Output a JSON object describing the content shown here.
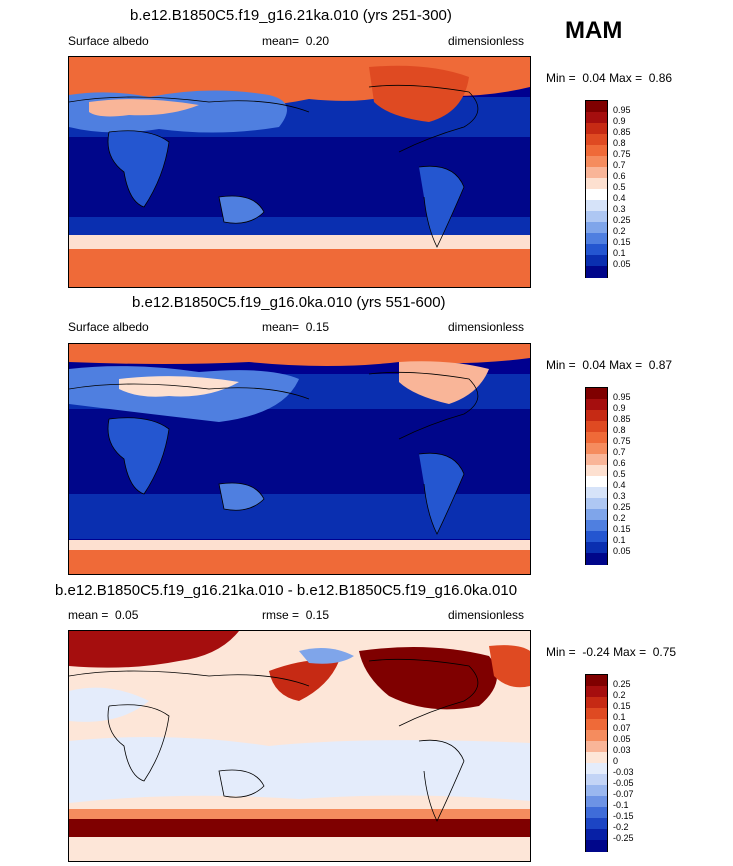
{
  "season": "MAM",
  "colors": {
    "ocean_deep": "#00008f",
    "ocean": "#0522a8",
    "land_blue": "#2c5bd6",
    "land_light": "#8fb0ec",
    "snow": "#f4ece4",
    "ice": "#f26a3a",
    "diff_high": "#a50e0e",
    "diff_pos": "#f7e1cf",
    "diff_neg": "#d9e6f7",
    "coast": "#000000"
  },
  "panels": [
    {
      "id": "top",
      "title": "b.e12.B1850C5.f19_g16.21ka.010 (yrs 251-300)",
      "left_label": "Surface albedo",
      "mean_label": "mean=",
      "mean_value": "0.20",
      "right_label": "dimensionless",
      "min_label": "Min =",
      "min_value": "0.04",
      "max_label": "Max =",
      "max_value": "0.86",
      "colorbar": {
        "labels": [
          "0.95",
          "0.9",
          "0.85",
          "0.8",
          "0.75",
          "0.7",
          "0.6",
          "0.5",
          "0.4",
          "0.3",
          "0.25",
          "0.2",
          "0.15",
          "0.1",
          "0.05"
        ],
        "colors": [
          "#7f0000",
          "#a50e0e",
          "#c62a14",
          "#df4a22",
          "#ef6a38",
          "#f58c5e",
          "#f9b598",
          "#fde0d0",
          "#ffffff",
          "#d6e3f9",
          "#aec7f3",
          "#7fa5ea",
          "#4f7fe0",
          "#2456d0",
          "#0a2fb0",
          "#00068a"
        ]
      }
    },
    {
      "id": "middle",
      "title": "b.e12.B1850C5.f19_g16.0ka.010 (yrs 551-600)",
      "left_label": "Surface albedo",
      "mean_label": "mean=",
      "mean_value": "0.15",
      "right_label": "dimensionless",
      "min_label": "Min =",
      "min_value": "0.04",
      "max_label": "Max =",
      "max_value": "0.87",
      "colorbar": {
        "labels": [
          "0.95",
          "0.9",
          "0.85",
          "0.8",
          "0.75",
          "0.7",
          "0.6",
          "0.5",
          "0.4",
          "0.3",
          "0.25",
          "0.2",
          "0.15",
          "0.1",
          "0.05"
        ],
        "colors": [
          "#7f0000",
          "#a50e0e",
          "#c62a14",
          "#df4a22",
          "#ef6a38",
          "#f58c5e",
          "#f9b598",
          "#fde0d0",
          "#ffffff",
          "#d6e3f9",
          "#aec7f3",
          "#7fa5ea",
          "#4f7fe0",
          "#2456d0",
          "#0a2fb0",
          "#00068a"
        ]
      }
    },
    {
      "id": "bottom",
      "title": "b.e12.B1850C5.f19_g16.21ka.010 - b.e12.B1850C5.f19_g16.0ka.010",
      "left_label": "mean =",
      "mean_value": "0.05",
      "rmse_label": "rmse =",
      "rmse_value": "0.15",
      "right_label": "dimensionless",
      "min_label": "Min =",
      "min_value": "-0.24",
      "max_label": "Max =",
      "max_value": "0.75",
      "colorbar": {
        "labels": [
          "0.25",
          "0.2",
          "0.15",
          "0.1",
          "0.07",
          "0.05",
          "0.03",
          "0",
          "-0.03",
          "-0.05",
          "-0.07",
          "-0.1",
          "-0.15",
          "-0.2",
          "-0.25"
        ],
        "colors": [
          "#7f0000",
          "#a50e0e",
          "#c62a14",
          "#df4a22",
          "#ef6a38",
          "#f58c5e",
          "#f9b598",
          "#fde6d8",
          "#e4ecfb",
          "#c3d4f6",
          "#9ab7ef",
          "#6d93e5",
          "#3f6cd9",
          "#1c45c4",
          "#0720a6",
          "#00068a"
        ]
      }
    }
  ]
}
